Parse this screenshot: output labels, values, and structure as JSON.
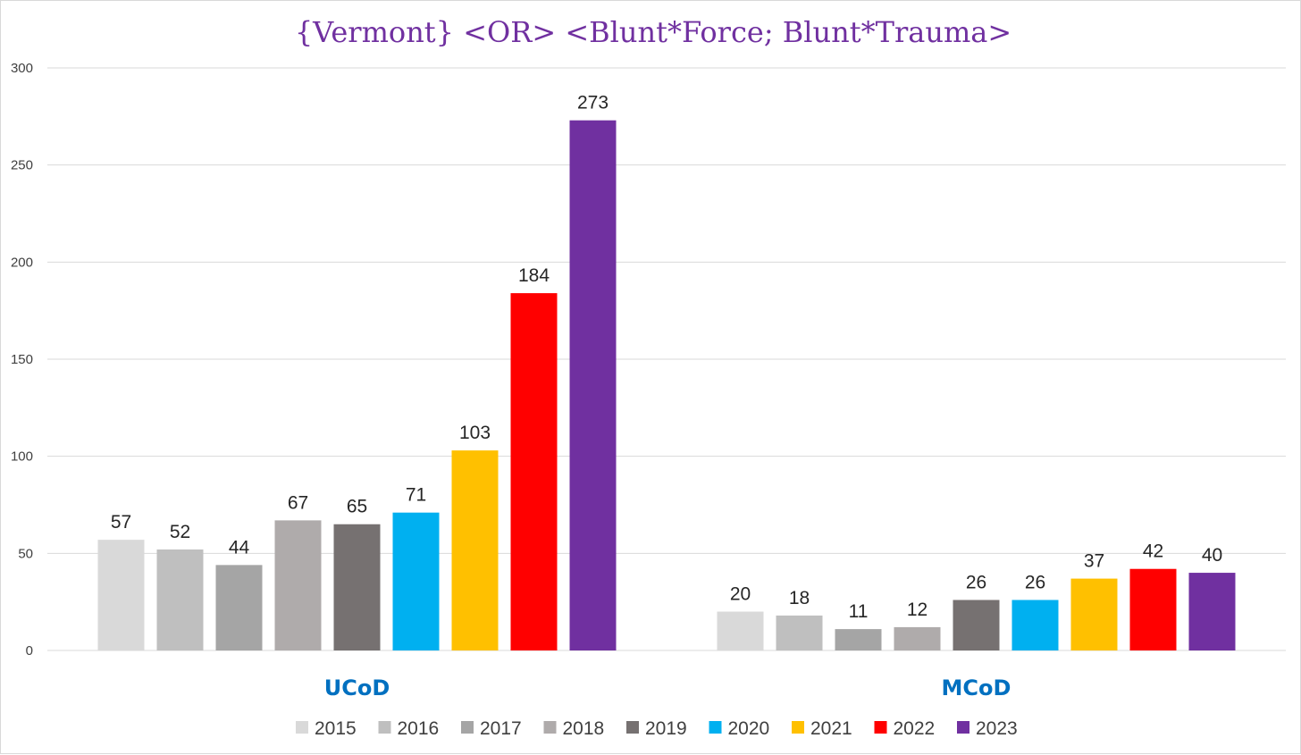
{
  "chart_data": {
    "type": "bar",
    "title": "{Vermont}  <OR> <Blunt*Force; Blunt*Trauma>",
    "categories": [
      "UCoD",
      "MCoD"
    ],
    "series": [
      {
        "name": "2015",
        "color": "#d9d9d9",
        "values": [
          57,
          20
        ]
      },
      {
        "name": "2016",
        "color": "#bfbfbf",
        "values": [
          52,
          18
        ]
      },
      {
        "name": "2017",
        "color": "#a5a5a5",
        "values": [
          44,
          11
        ]
      },
      {
        "name": "2018",
        "color": "#afabab",
        "values": [
          67,
          12
        ]
      },
      {
        "name": "2019",
        "color": "#767171",
        "values": [
          65,
          26
        ]
      },
      {
        "name": "2020",
        "color": "#00b0f0",
        "values": [
          71,
          26
        ]
      },
      {
        "name": "2021",
        "color": "#ffc000",
        "values": [
          103,
          37
        ]
      },
      {
        "name": "2022",
        "color": "#ff0000",
        "values": [
          184,
          42
        ]
      },
      {
        "name": "2023",
        "color": "#7030a0",
        "values": [
          273,
          40
        ]
      }
    ],
    "yticks": [
      "0",
      "50",
      "100",
      "150",
      "200",
      "250",
      "300"
    ],
    "ylim": [
      0,
      300
    ],
    "xlabel": "",
    "ylabel": "",
    "grid": true,
    "data_labels": true,
    "legend_position": "bottom"
  }
}
